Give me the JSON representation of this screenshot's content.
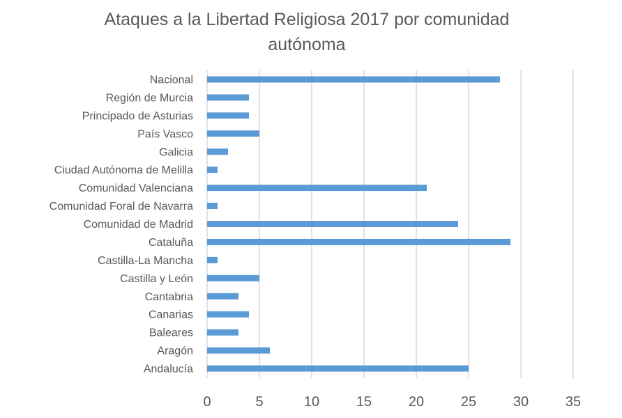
{
  "chart_data": {
    "type": "bar",
    "orientation": "horizontal",
    "title": "Ataques a la Libertad Religiosa 2017 por comunidad autónoma",
    "categories": [
      "Nacional",
      "Región de Murcia",
      "Principado de Asturias",
      "País Vasco",
      "Galicia",
      "Ciudad Autónoma de Melilla",
      "Comunidad Valenciana",
      "Comunidad Foral de Navarra",
      "Comunidad de Madrid",
      "Cataluña",
      "Castilla-La Mancha",
      "Castilla y León",
      "Cantabria",
      "Canarias",
      "Baleares",
      "Aragón",
      "Andalucía"
    ],
    "values": [
      28,
      4,
      4,
      5,
      2,
      1,
      21,
      1,
      24,
      29,
      1,
      5,
      3,
      4,
      3,
      6,
      25
    ],
    "xlim": [
      0,
      35
    ],
    "xticks": [
      "0",
      "5",
      "10",
      "15",
      "20",
      "25",
      "30",
      "35"
    ],
    "grid": true,
    "bar_color": "#5B9BD5",
    "xlabel": "",
    "ylabel": ""
  }
}
